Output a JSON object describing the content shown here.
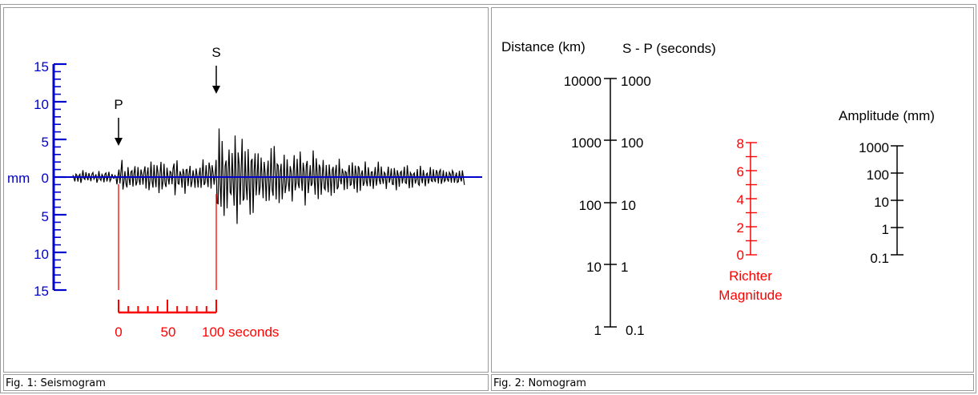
{
  "captions": {
    "fig1": "Fig. 1: Seismogram",
    "fig2": "Fig. 2: Nomogram"
  },
  "seismogram": {
    "y_axis_unit": "mm",
    "y_tick_labels_up": [
      "0",
      "5",
      "10",
      "15"
    ],
    "y_tick_labels_down": [
      "5",
      "10",
      "15"
    ],
    "p_label": "P",
    "s_label": "S",
    "time_scale_labels": [
      "0",
      "50",
      "100 seconds"
    ],
    "colors": {
      "axis": "#0000cc",
      "trace": "#000000",
      "markers": "#ff0000"
    }
  },
  "nomogram": {
    "distance_title": "Distance (km)",
    "sp_title": "S - P (seconds)",
    "distance_labels": [
      "10000",
      "1000",
      "100",
      "10",
      "1"
    ],
    "sp_labels": [
      "1000",
      "100",
      "10",
      "1",
      "0.1"
    ],
    "magnitude_labels": [
      "8",
      "6",
      "4",
      "2",
      "0"
    ],
    "magnitude_title": [
      "Richter",
      "Magnitude"
    ],
    "amplitude_title": "Amplitude (mm)",
    "amplitude_labels": [
      "1000",
      "100",
      "10",
      "1",
      "0.1"
    ],
    "colors": {
      "scale": "#000000",
      "magnitude": "#ff0000"
    }
  }
}
